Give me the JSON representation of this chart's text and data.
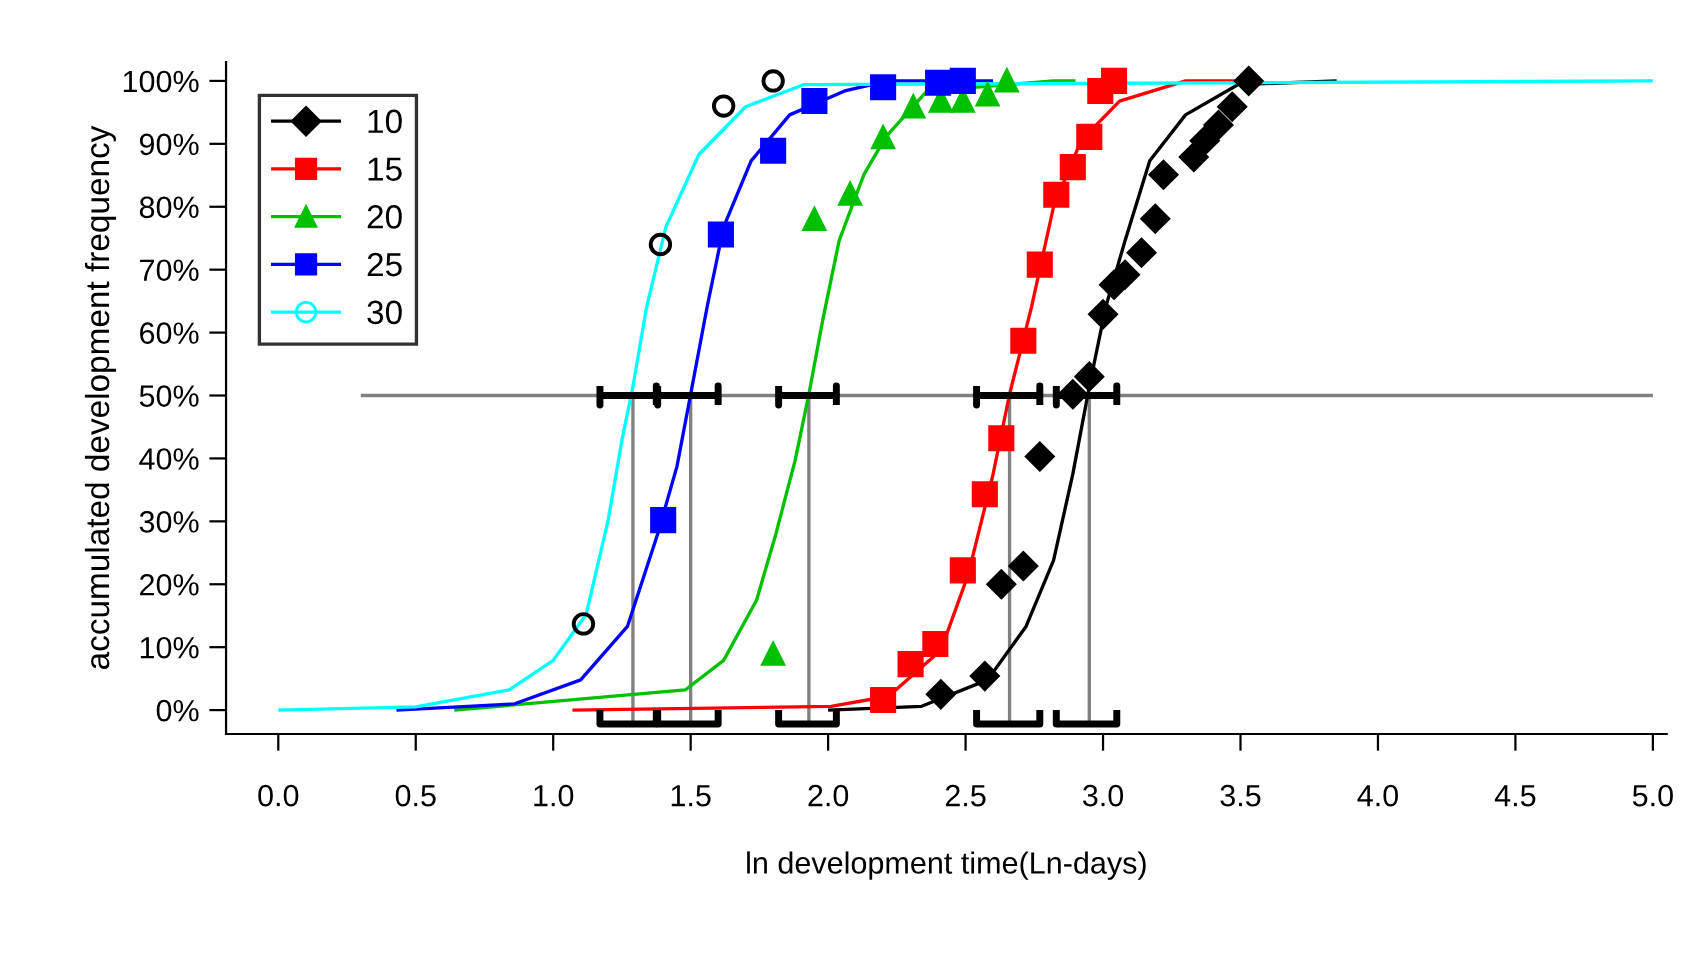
{
  "chart_data": {
    "type": "scatter",
    "xlabel": "ln development time(Ln-days)",
    "ylabel": "accumulated development frequency",
    "xlim": [
      -0.19,
      5.05
    ],
    "ylim": [
      -3.8,
      103
    ],
    "xticks": [
      {
        "value": 0,
        "label": "0.0"
      },
      {
        "value": 0.5,
        "label": "0.5"
      },
      {
        "value": 1,
        "label": "1.0"
      },
      {
        "value": 1.5,
        "label": "1.5"
      },
      {
        "value": 2,
        "label": "2.0"
      },
      {
        "value": 2.5,
        "label": "2.5"
      },
      {
        "value": 3,
        "label": "3.0"
      },
      {
        "value": 3.5,
        "label": "3.5"
      },
      {
        "value": 4,
        "label": "4.0"
      },
      {
        "value": 4.5,
        "label": "4.5"
      },
      {
        "value": 5,
        "label": "5.0"
      }
    ],
    "yticks": [
      {
        "value": 0,
        "label": "0%"
      },
      {
        "value": 10,
        "label": "10%"
      },
      {
        "value": 20,
        "label": "20%"
      },
      {
        "value": 30,
        "label": "30%"
      },
      {
        "value": 40,
        "label": "40%"
      },
      {
        "value": 50,
        "label": "50%"
      },
      {
        "value": 60,
        "label": "60%"
      },
      {
        "value": 70,
        "label": "70%"
      },
      {
        "value": 80,
        "label": "80%"
      },
      {
        "value": 90,
        "label": "90%"
      },
      {
        "value": 100,
        "label": "100%"
      }
    ],
    "legend": "top left",
    "grid": false,
    "series": [
      {
        "type": "line",
        "color": "#808080",
        "x": [
          0.3,
          5.0
        ],
        "values": [
          50,
          50
        ]
      },
      {
        "type": "line",
        "color": "#808080",
        "x": [
          1.29,
          1.29
        ],
        "values": [
          -2.2,
          50
        ]
      },
      {
        "type": "line",
        "color": "#808080",
        "x": [
          1.5,
          1.5
        ],
        "values": [
          -2.2,
          50
        ]
      },
      {
        "type": "line",
        "color": "#808080",
        "x": [
          1.93,
          1.93
        ],
        "values": [
          -2.2,
          50
        ]
      },
      {
        "type": "line",
        "color": "#808080",
        "x": [
          2.66,
          2.66
        ],
        "values": [
          -2.2,
          50
        ]
      },
      {
        "type": "line",
        "color": "#808080",
        "x": [
          2.95,
          2.95
        ],
        "values": [
          -2.2,
          50
        ]
      },
      {
        "type": "line",
        "name": "10",
        "color": "#000000",
        "x": [
          2.0,
          2.34,
          2.58,
          2.72,
          2.82,
          2.89,
          2.95,
          3.01,
          3.08,
          3.17,
          3.3,
          3.49,
          3.85
        ],
        "values": [
          0,
          0.6,
          4.8,
          13.3,
          23.8,
          37.5,
          51.4,
          64.1,
          74.6,
          87.3,
          94.6,
          99.4,
          100
        ]
      },
      {
        "type": "line",
        "name": "15",
        "color": "#ff0000",
        "x": [
          1.07,
          2.01,
          2.22,
          2.41,
          2.51,
          2.6,
          2.66,
          2.74,
          2.82,
          2.92,
          3.06,
          3.3,
          3.5
        ],
        "values": [
          0,
          0.6,
          2.2,
          9.5,
          21.6,
          37.5,
          50.2,
          64.1,
          80,
          90.5,
          96.8,
          100,
          100
        ]
      },
      {
        "type": "line",
        "name": "20",
        "color": "#00c000",
        "x": [
          0.64,
          1.48,
          1.62,
          1.74,
          1.81,
          1.88,
          1.93,
          1.98,
          2.04,
          2.13,
          2.21,
          2.36,
          2.82,
          2.9
        ],
        "values": [
          0,
          3.2,
          7.9,
          17.5,
          28,
          39.7,
          50.2,
          61.9,
          74.6,
          85.1,
          91.1,
          98.4,
          100,
          100
        ]
      },
      {
        "type": "line",
        "name": "25",
        "color": "#0000ff",
        "x": [
          0.43,
          0.86,
          1.1,
          1.27,
          1.38,
          1.45,
          1.5,
          1.56,
          1.62,
          1.72,
          1.86,
          2.06,
          2.22,
          2.6
        ],
        "values": [
          0,
          1,
          4.8,
          13.3,
          28,
          38.7,
          50.2,
          64.1,
          76.8,
          87.3,
          94.6,
          98.4,
          100,
          100
        ]
      },
      {
        "type": "line",
        "name": "30",
        "color": "#00ffff",
        "x": [
          0.0,
          0.5,
          0.84,
          1.0,
          1.12,
          1.2,
          1.25,
          1.29,
          1.34,
          1.41,
          1.53,
          1.7,
          1.91,
          5.0
        ],
        "values": [
          0,
          0.5,
          3.2,
          7.9,
          15.2,
          30.2,
          42.9,
          51.4,
          64.1,
          76.8,
          88.3,
          95.9,
          99.4,
          100
        ]
      },
      {
        "marker": "diamond",
        "color": "#000000",
        "x": [
          2.41,
          2.57,
          2.63,
          2.71,
          2.77,
          2.89,
          2.95,
          3.0,
          3.04,
          3.08,
          3.14,
          3.19,
          3.22,
          3.33,
          3.37,
          3.42,
          3.47,
          3.53
        ],
        "values": [
          2.5,
          5.4,
          20,
          22.9,
          40.3,
          50.2,
          53,
          62.9,
          67.6,
          69.2,
          72.7,
          78.1,
          85.1,
          87.9,
          90.5,
          93,
          95.9,
          100
        ]
      },
      {
        "marker": "square",
        "color": "#ff0000",
        "x": [
          2.2,
          2.3,
          2.39,
          2.49,
          2.57,
          2.63,
          2.71,
          2.77,
          2.83,
          2.89,
          2.95,
          2.99,
          3.04
        ],
        "values": [
          1.6,
          7.3,
          10.5,
          22.2,
          34.3,
          43.2,
          58.7,
          70.8,
          81.9,
          86.3,
          91.1,
          98.4,
          100
        ]
      },
      {
        "marker": "triangle",
        "color": "#00c000",
        "x": [
          1.8,
          1.95,
          2.08,
          2.2,
          2.31,
          2.41,
          2.49,
          2.58,
          2.65
        ],
        "values": [
          8.9,
          78,
          82,
          91,
          95.9,
          96.8,
          96.8,
          97.8,
          100
        ]
      },
      {
        "marker": "square",
        "color": "#0000ff",
        "x": [
          1.4,
          1.61,
          1.8,
          1.95,
          2.2,
          2.4,
          2.49
        ],
        "values": [
          30.2,
          75.6,
          88.9,
          96.8,
          99,
          99.7,
          100
        ]
      },
      {
        "marker": "circle",
        "color": "#000000",
        "x": [
          1.11,
          1.39,
          1.62,
          1.8
        ],
        "values": [
          13.7,
          74,
          96,
          100
        ]
      },
      {
        "type": "line",
        "color": "#000000",
        "x": [
          1.17,
          1.17,
          1.17,
          1.375,
          1.375,
          1.375
        ],
        "values": [
          51.5,
          48.5,
          50,
          50,
          51.5,
          48.5
        ]
      },
      {
        "type": "line",
        "color": "#000000",
        "x": [
          1.38,
          1.38,
          1.38,
          1.6,
          1.6,
          1.6
        ],
        "values": [
          51.5,
          48.5,
          50,
          50,
          51.5,
          48.5
        ]
      },
      {
        "type": "line",
        "color": "#000000",
        "x": [
          1.82,
          1.82,
          1.82,
          2.03,
          2.03,
          2.03
        ],
        "values": [
          51.5,
          48.5,
          50,
          50,
          51.5,
          48.5
        ]
      },
      {
        "type": "line",
        "color": "#000000",
        "x": [
          2.54,
          2.54,
          2.54,
          2.77,
          2.77,
          2.77
        ],
        "values": [
          51.5,
          48.5,
          50,
          50,
          51.5,
          48.5
        ]
      },
      {
        "type": "line",
        "color": "#000000",
        "x": [
          2.83,
          2.83,
          2.83,
          3.05,
          3.05,
          3.05
        ],
        "values": [
          51.5,
          48.5,
          50,
          50,
          51.5,
          48.5
        ]
      },
      {
        "type": "line",
        "color": "#000000",
        "x": [
          1.17,
          1.17,
          1.375,
          1.375
        ],
        "values": [
          0,
          -2.2,
          -2.2,
          0
        ]
      },
      {
        "type": "line",
        "color": "#000000",
        "x": [
          1.38,
          1.38,
          1.6,
          1.6
        ],
        "values": [
          0,
          -2.2,
          -2.2,
          0
        ]
      },
      {
        "type": "line",
        "color": "#000000",
        "x": [
          1.82,
          1.82,
          2.03,
          2.03
        ],
        "values": [
          0,
          -2.2,
          -2.2,
          0
        ]
      },
      {
        "type": "line",
        "color": "#000000",
        "x": [
          2.54,
          2.54,
          2.77,
          2.77
        ],
        "values": [
          0,
          -2.2,
          -2.2,
          0
        ]
      },
      {
        "type": "line",
        "color": "#000000",
        "x": [
          2.83,
          2.83,
          3.05,
          3.05
        ],
        "values": [
          0,
          -2.2,
          -2.2,
          0
        ]
      }
    ]
  }
}
